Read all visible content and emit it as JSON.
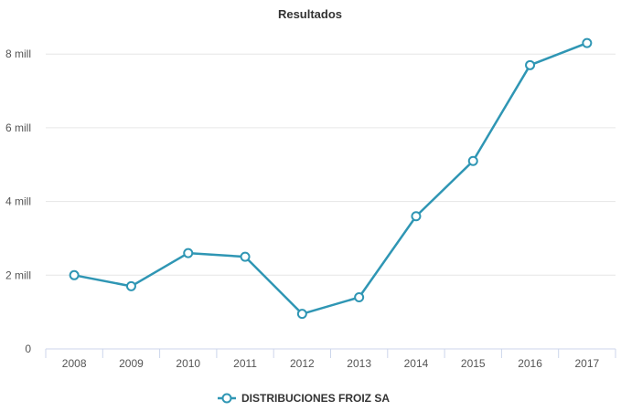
{
  "chart_data": {
    "type": "line",
    "title": "Resultados",
    "xlabel": "",
    "ylabel": "",
    "categories": [
      "2008",
      "2009",
      "2010",
      "2011",
      "2012",
      "2013",
      "2014",
      "2015",
      "2016",
      "2017"
    ],
    "series": [
      {
        "name": "DISTRIBUCIONES FROIZ SA",
        "color": "#2f96b4",
        "values": [
          2.0,
          1.7,
          2.6,
          2.5,
          0.95,
          1.4,
          3.6,
          5.1,
          7.7,
          8.3
        ]
      }
    ],
    "yticks": [
      {
        "value": 0,
        "label": "0"
      },
      {
        "value": 2,
        "label": "2 mill"
      },
      {
        "value": 4,
        "label": "4 mill"
      },
      {
        "value": 6,
        "label": "6 mill"
      },
      {
        "value": 8,
        "label": "8 mill"
      }
    ],
    "ylim": [
      0,
      8.6
    ],
    "grid": true,
    "legend_position": "bottom-center"
  }
}
